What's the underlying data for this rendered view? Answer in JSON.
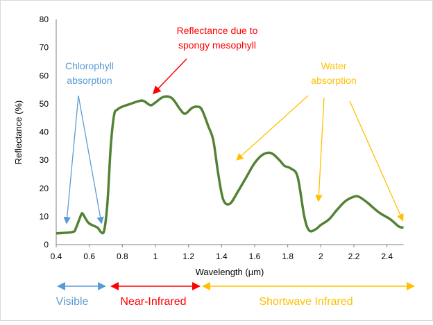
{
  "chart_data": {
    "type": "line",
    "xlabel": "Wavelength (µm)",
    "ylabel": "Reflectance (%)",
    "xlim": [
      0.4,
      2.5
    ],
    "ylim": [
      0,
      80
    ],
    "xticks": [
      "0.4",
      "0.6",
      "0.8",
      "1",
      "1.2",
      "1.4",
      "1.6",
      "1.8",
      "2",
      "2.2",
      "2.4"
    ],
    "yticks": [
      "0",
      "10",
      "20",
      "30",
      "40",
      "50",
      "60",
      "70",
      "80"
    ],
    "grid": false,
    "series": [
      {
        "color": "#548235",
        "x": [
          0.4,
          0.5,
          0.52,
          0.55,
          0.56,
          0.58,
          0.6,
          0.65,
          0.67,
          0.69,
          0.71,
          0.73,
          0.75,
          0.77,
          0.8,
          0.85,
          0.9,
          0.93,
          0.97,
          1.0,
          1.05,
          1.1,
          1.15,
          1.18,
          1.22,
          1.25,
          1.28,
          1.32,
          1.35,
          1.38,
          1.41,
          1.45,
          1.5,
          1.55,
          1.6,
          1.65,
          1.7,
          1.75,
          1.78,
          1.82,
          1.86,
          1.9,
          1.93,
          1.97,
          2.0,
          2.05,
          2.1,
          2.15,
          2.2,
          2.23,
          2.28,
          2.35,
          2.42,
          2.47,
          2.5
        ],
        "y": [
          4,
          4.5,
          6,
          10.5,
          11,
          9,
          7.5,
          6,
          4.5,
          5,
          15,
          35,
          46,
          48,
          49,
          50,
          51,
          51,
          49.5,
          50.5,
          52.5,
          52,
          48,
          46.5,
          48.5,
          49,
          48,
          42,
          37,
          25,
          16,
          14.5,
          19,
          24,
          29,
          32,
          32.5,
          30,
          28,
          27,
          24,
          10,
          5,
          5.5,
          7,
          9,
          12.5,
          15.5,
          17,
          17,
          15,
          11.5,
          9,
          6.5,
          6
        ]
      }
    ],
    "annotations": {
      "chlorophyll": {
        "lines": [
          "Chlorophyll",
          "absorption"
        ],
        "color": "#5b9bd5"
      },
      "mesophyll": {
        "lines": [
          "Reflectance due to",
          "spongy mesophyll"
        ],
        "color": "#ff0000"
      },
      "water": {
        "lines": [
          "Water",
          "absorption"
        ],
        "color": "#ffc000"
      }
    },
    "regions": [
      {
        "label": "Visible",
        "color": "#5b9bd5"
      },
      {
        "label": "Near-Infrared",
        "color": "#ff0000"
      },
      {
        "label": "Shortwave Infrared",
        "color": "#ffc000"
      }
    ]
  }
}
